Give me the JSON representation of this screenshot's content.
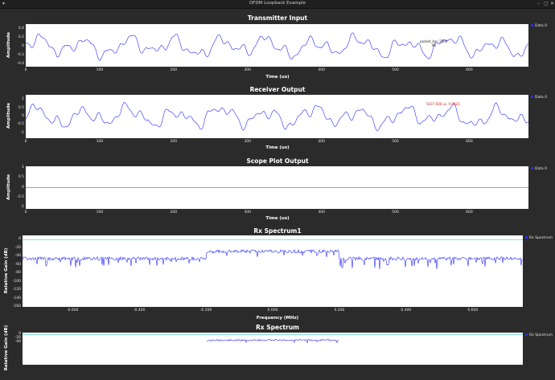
{
  "window": {
    "title": "OFDM Loopback Example"
  },
  "panels": [
    {
      "title": "Transmitter Input",
      "xlabel": "Time (us)",
      "ylabel": "Amplitude",
      "legend": "Data 0",
      "annotation": "packet_len: 2800",
      "annotation2": "96",
      "colors": {
        "line": "#2a2aff",
        "annotation": "#222222"
      },
      "chart_data": {
        "type": "line",
        "xlim": [
          0,
          680
        ],
        "ylim": [
          -0.45,
          0.5
        ],
        "xticks": [
          "0",
          "100",
          "200",
          "300",
          "400",
          "500",
          "600"
        ],
        "yticks": [
          "0.4",
          "0.2",
          "0",
          "-0.2",
          "-0.4"
        ],
        "series": [
          {
            "name": "Data 0",
            "amplitude": 0.35
          }
        ]
      }
    },
    {
      "title": "Receiver Output",
      "xlabel": "Time (us)",
      "ylabel": "Amplitude",
      "legend": "Data 0",
      "annotation": "5037.936 us, 0.0023",
      "colors": {
        "line": "#2a2aff",
        "annotation": "#cc2222"
      },
      "chart_data": {
        "type": "line",
        "xlim": [
          0,
          680
        ],
        "ylim": [
          -1.3,
          1.3
        ],
        "xticks": [
          "0",
          "100",
          "200",
          "300",
          "400",
          "500",
          "600"
        ],
        "yticks": [
          "1",
          "0.5",
          "0",
          "-0.5",
          "-1"
        ],
        "series": [
          {
            "name": "Data 0",
            "amplitude": 0.95
          }
        ]
      }
    },
    {
      "title": "Scope Plot Output",
      "xlabel": "Time (us)",
      "ylabel": "Amplitude",
      "legend": "Data 0",
      "colors": {
        "line": "#2a2aff"
      },
      "chart_data": {
        "type": "line",
        "xlim": [
          0,
          680
        ],
        "ylim": [
          -1.1,
          1.1
        ],
        "xticks": [
          "0",
          "100",
          "200",
          "300",
          "400",
          "500",
          "600"
        ],
        "yticks": [
          "1",
          "0.5",
          "0",
          "-0.5",
          "-1"
        ],
        "series": [
          {
            "name": "Data 0",
            "constant": 0
          }
        ]
      }
    },
    {
      "title": "Rx Spectrum1",
      "xlabel": "Frequency (MHz)",
      "ylabel": "Relative Gain (dB)",
      "legend": "Rx Spectrum",
      "colors": {
        "line": "#2a2aff",
        "ref": "#33cccc"
      },
      "chart_data": {
        "type": "line",
        "xlim": [
          -0.75,
          0.75
        ],
        "ylim": [
          -160,
          10
        ],
        "xticks": [
          "-0.600",
          "-0.400",
          "-0.200",
          "0.000",
          "0.200",
          "0.400",
          "0.600"
        ],
        "yticks": [
          "0",
          "-20",
          "-40",
          "-60",
          "-80",
          "-100",
          "-120",
          "-140",
          "-160"
        ],
        "series": [
          {
            "name": "Rx Spectrum",
            "floor_db": -45,
            "band_db": -28,
            "band": [
              -0.2,
              0.2
            ]
          }
        ],
        "reference_db": 0
      }
    },
    {
      "title": "Rx Spectrum",
      "xlabel": "",
      "ylabel": "Relative Gain (dB)",
      "legend": "Rx Spectrum",
      "colors": {
        "line": "#2a2aff",
        "ref": "#33cccc"
      },
      "chart_data": {
        "type": "line",
        "xlim": [
          -0.75,
          0.75
        ],
        "ylim": [
          -160,
          10
        ],
        "yticks": [
          "0",
          "-20",
          "-40"
        ],
        "series": [
          {
            "name": "Rx Spectrum",
            "band_db": -30,
            "band": [
              -0.2,
              0.2
            ]
          }
        ],
        "reference_db": 0
      }
    }
  ]
}
